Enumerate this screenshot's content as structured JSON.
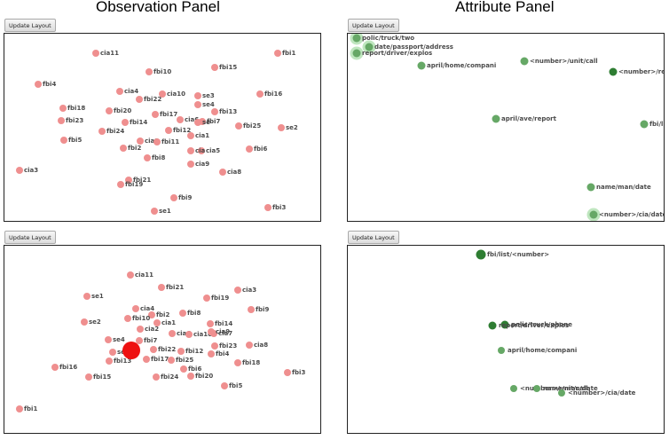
{
  "titles": {
    "observation": "Observation Panel",
    "attribute": "Attribute Panel"
  },
  "button_label": "Update Layout",
  "colors": {
    "obs_node": "#ef8f8f",
    "obs_selected": "#ee1111",
    "attr_node": "#66a866",
    "attr_node_dark": "#2e7d32",
    "attr_halo": "#bfe6bf"
  },
  "plot1_nodes": [
    {
      "label": "cia11"
    },
    {
      "label": "fbi15"
    },
    {
      "label": "fbi1"
    },
    {
      "label": "fbi4"
    },
    {
      "label": "fbi10"
    },
    {
      "label": "cia4"
    },
    {
      "label": "cia10"
    },
    {
      "label": "se3"
    },
    {
      "label": "fbi16"
    },
    {
      "label": "fbi22"
    },
    {
      "label": "se4"
    },
    {
      "label": "fbi18"
    },
    {
      "label": "fbi20"
    },
    {
      "label": "fbi17"
    },
    {
      "label": "fbi13"
    },
    {
      "label": "fbi23"
    },
    {
      "label": "fbi14"
    },
    {
      "label": "cia6"
    },
    {
      "label": "fbi7"
    },
    {
      "label": "fbi25"
    },
    {
      "label": "se2"
    },
    {
      "label": "fbi24"
    },
    {
      "label": "fbi12"
    },
    {
      "label": "cia1"
    },
    {
      "label": "fbi5"
    },
    {
      "label": "cia2"
    },
    {
      "label": "fbi11"
    },
    {
      "label": "fbi2"
    },
    {
      "label": "cia5"
    },
    {
      "label": "fbi6"
    },
    {
      "label": "fbi8"
    },
    {
      "label": "cia9"
    },
    {
      "label": "cia3"
    },
    {
      "label": "cia8"
    },
    {
      "label": "fbi21"
    },
    {
      "label": "fbi19"
    },
    {
      "label": "fbi9"
    },
    {
      "label": "fbi3"
    },
    {
      "label": "se1"
    },
    {
      "label": "se"
    },
    {
      "label": "cia"
    }
  ],
  "plot2_nodes": [
    {
      "label": "polic/truck/two"
    },
    {
      "label": "date/passport/address"
    },
    {
      "label": "report/driver/explos"
    },
    {
      "label": "april/home/compani"
    },
    {
      "label": "<number>/unit/call"
    },
    {
      "label": "<number>/re"
    },
    {
      "label": "april/ave/report"
    },
    {
      "label": "fbi/li"
    },
    {
      "label": "name/man/date"
    },
    {
      "label": "<number>/cia/date"
    }
  ],
  "plot3_nodes": [
    {
      "label": "cia11"
    },
    {
      "label": "se1"
    },
    {
      "label": "fbi21"
    },
    {
      "label": "fbi19"
    },
    {
      "label": "cia3"
    },
    {
      "label": "cia4"
    },
    {
      "label": "fbi2"
    },
    {
      "label": "fbi8"
    },
    {
      "label": "fbi9"
    },
    {
      "label": "fbi10"
    },
    {
      "label": "cia1"
    },
    {
      "label": "se2"
    },
    {
      "label": "cia2"
    },
    {
      "label": "fbi14"
    },
    {
      "label": "cia6"
    },
    {
      "label": "cia10"
    },
    {
      "label": "cia7"
    },
    {
      "label": "cia9"
    },
    {
      "label": "se4"
    },
    {
      "label": "fbi7"
    },
    {
      "label": "se"
    },
    {
      "label": "fbi23"
    },
    {
      "label": "cia8"
    },
    {
      "label": "fbi22"
    },
    {
      "label": "fbi12"
    },
    {
      "label": "fbi4"
    },
    {
      "label": "fbi13"
    },
    {
      "label": "fbi17"
    },
    {
      "label": "fbi25"
    },
    {
      "label": "fbi18"
    },
    {
      "label": "fbi16"
    },
    {
      "label": "fbi6"
    },
    {
      "label": "fbi3"
    },
    {
      "label": "fbi15"
    },
    {
      "label": "fbi24"
    },
    {
      "label": "fbi20"
    },
    {
      "label": "fbi5"
    },
    {
      "label": "fbi1"
    }
  ],
  "plot4_nodes": [
    {
      "label": "fbi/list/<number>"
    },
    {
      "label": "polic/truck/phone"
    },
    {
      "label": "report/driver/explos"
    },
    {
      "label": "april/home/compani"
    },
    {
      "label": "<number>/unit/call"
    },
    {
      "label": "name/man/date"
    },
    {
      "label": "<number>/cia/date"
    }
  ]
}
